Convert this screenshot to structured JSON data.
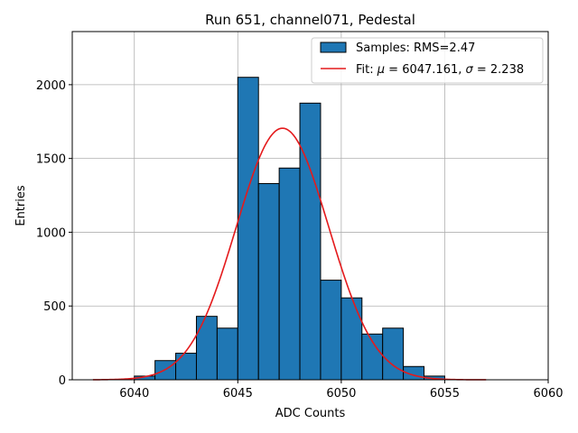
{
  "chart_data": {
    "type": "bar",
    "title": "Run 651, channel071, Pedestal",
    "xlabel": "ADC Counts",
    "ylabel": "Entries",
    "xlim": [
      6037,
      6060
    ],
    "ylim": [
      0,
      2360
    ],
    "xticks": [
      6040,
      6045,
      6050,
      6055,
      6060
    ],
    "yticks": [
      0,
      500,
      1000,
      1500,
      2000
    ],
    "grid": true,
    "legend_position": "upper-right",
    "histogram": {
      "name": "Samples: RMS=2.47",
      "bin_width": 1,
      "bin_edges_start": 6040,
      "values": [
        25,
        130,
        180,
        430,
        350,
        2050,
        1330,
        1435,
        1875,
        675,
        555,
        310,
        350,
        90,
        25
      ],
      "fill": "#1f77b4",
      "edge": "#000000"
    },
    "fit": {
      "name_prefix": "Fit: ",
      "name_mu": "μ",
      "name_mid": " = 6047.161, ",
      "name_sigma": "σ",
      "name_suffix": " = 2.238",
      "mu": 6047.161,
      "sigma": 2.238,
      "amplitude": 1705,
      "x_range": [
        6038,
        6057
      ],
      "color": "#e41a1c"
    }
  }
}
